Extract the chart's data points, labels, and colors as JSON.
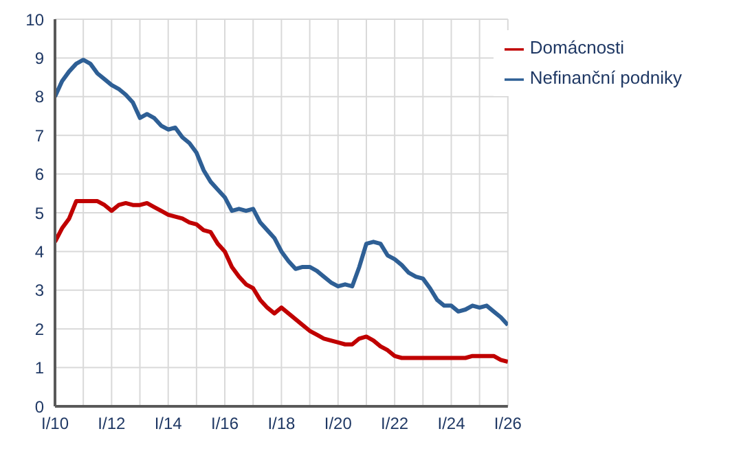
{
  "chart_data": {
    "type": "line",
    "categories": [
      "I/10",
      null,
      null,
      null,
      null,
      null,
      null,
      null,
      "I/12",
      null,
      null,
      null,
      null,
      null,
      null,
      null,
      "I/14",
      null,
      null,
      null,
      null,
      null,
      null,
      null,
      "I/16",
      null,
      null,
      null,
      null,
      null,
      null,
      null,
      "I/18",
      null,
      null,
      null,
      null,
      null,
      null,
      null,
      "I/20",
      null,
      null,
      null,
      null,
      null,
      null,
      null,
      "I/22",
      null,
      null,
      null,
      null,
      null,
      null,
      null,
      "I/24",
      null,
      null,
      null,
      null,
      null,
      null,
      null,
      "I/26"
    ],
    "series": [
      {
        "name": "Nefinanční podniky",
        "color": "#2e5f95",
        "values": [
          8.0,
          8.4,
          8.65,
          8.85,
          8.95,
          8.85,
          8.6,
          8.45,
          8.3,
          8.2,
          8.05,
          7.85,
          7.45,
          7.55,
          7.45,
          7.25,
          7.15,
          7.2,
          6.95,
          6.8,
          6.55,
          6.1,
          5.8,
          5.6,
          5.4,
          5.05,
          5.1,
          5.05,
          5.1,
          4.75,
          4.55,
          4.35,
          4.0,
          3.75,
          3.55,
          3.6,
          3.6,
          3.5,
          3.35,
          3.2,
          3.1,
          3.15,
          3.1,
          3.6,
          4.2,
          4.25,
          4.2,
          3.9,
          3.8,
          3.65,
          3.45,
          3.35,
          3.3,
          3.05,
          2.75,
          2.6,
          2.6,
          2.45,
          2.5,
          2.6,
          2.55,
          2.6,
          2.45,
          2.3,
          2.1
        ]
      },
      {
        "name": "Domácnosti",
        "color": "#c00000",
        "values": [
          4.25,
          4.6,
          4.85,
          5.3,
          5.3,
          5.3,
          5.3,
          5.2,
          5.05,
          5.2,
          5.25,
          5.2,
          5.2,
          5.25,
          5.15,
          5.05,
          4.95,
          4.9,
          4.85,
          4.75,
          4.7,
          4.55,
          4.5,
          4.2,
          4.0,
          3.6,
          3.35,
          3.15,
          3.05,
          2.75,
          2.55,
          2.4,
          2.55,
          2.4,
          2.25,
          2.1,
          1.95,
          1.85,
          1.75,
          1.7,
          1.65,
          1.6,
          1.6,
          1.75,
          1.8,
          1.7,
          1.55,
          1.45,
          1.3,
          1.25,
          1.25,
          1.25,
          1.25,
          1.25,
          1.25,
          1.25,
          1.25,
          1.25,
          1.25,
          1.3,
          1.3,
          1.3,
          1.3,
          1.2,
          1.15
        ]
      }
    ],
    "ylim": [
      0,
      10
    ],
    "yticks": [
      0,
      1,
      2,
      3,
      4,
      5,
      6,
      7,
      8,
      9,
      10
    ],
    "grid": true,
    "legend": "top right",
    "marker": "none",
    "line_style": "solid"
  }
}
